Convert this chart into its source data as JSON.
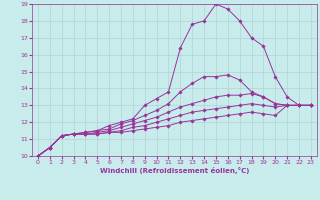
{
  "xlabel": "Windchill (Refroidissement éolien,°C)",
  "bg_color": "#c8ecec",
  "line_color": "#993399",
  "grid_color": "#aacccc",
  "xlim": [
    -0.5,
    23.5
  ],
  "ylim": [
    10,
    19
  ],
  "xticks": [
    0,
    1,
    2,
    3,
    4,
    5,
    6,
    7,
    8,
    9,
    10,
    11,
    12,
    13,
    14,
    15,
    16,
    17,
    18,
    19,
    20,
    21,
    22,
    23
  ],
  "yticks": [
    10,
    11,
    12,
    13,
    14,
    15,
    16,
    17,
    18,
    19
  ],
  "x": [
    0,
    1,
    2,
    3,
    4,
    5,
    6,
    7,
    8,
    9,
    10,
    11,
    12,
    13,
    14,
    15,
    16,
    17,
    18,
    19,
    20,
    21,
    22,
    23
  ],
  "y_main": [
    10.0,
    10.5,
    11.2,
    11.3,
    11.4,
    11.5,
    11.8,
    12.0,
    12.2,
    13.0,
    13.4,
    13.8,
    16.4,
    17.8,
    18.0,
    19.0,
    18.7,
    18.0,
    17.0,
    16.5,
    14.7,
    13.5,
    13.0,
    13.0
  ],
  "y_flat1": [
    10.0,
    10.5,
    11.2,
    11.3,
    11.4,
    11.5,
    11.6,
    11.9,
    12.1,
    12.4,
    12.7,
    13.1,
    13.8,
    14.3,
    14.7,
    14.7,
    14.8,
    14.5,
    13.8,
    13.5,
    13.1,
    13.0,
    13.0,
    13.0
  ],
  "y_flat2": [
    10.0,
    10.5,
    11.2,
    11.3,
    11.3,
    11.4,
    11.5,
    11.7,
    11.9,
    12.1,
    12.3,
    12.6,
    12.9,
    13.1,
    13.3,
    13.5,
    13.6,
    13.6,
    13.7,
    13.5,
    13.1,
    13.0,
    13.0,
    13.0
  ],
  "y_flat3": [
    10.0,
    10.5,
    11.2,
    11.3,
    11.3,
    11.3,
    11.4,
    11.5,
    11.7,
    11.8,
    12.0,
    12.2,
    12.4,
    12.6,
    12.7,
    12.8,
    12.9,
    13.0,
    13.1,
    13.0,
    12.9,
    13.0,
    13.0,
    13.0
  ],
  "y_flat4": [
    10.0,
    10.5,
    11.2,
    11.3,
    11.3,
    11.3,
    11.4,
    11.4,
    11.5,
    11.6,
    11.7,
    11.8,
    12.0,
    12.1,
    12.2,
    12.3,
    12.4,
    12.5,
    12.6,
    12.5,
    12.4,
    13.0,
    13.0,
    13.0
  ],
  "tick_fontsize": 4.5,
  "xlabel_fontsize": 5.0,
  "marker_size": 1.8,
  "line_width": 0.7
}
